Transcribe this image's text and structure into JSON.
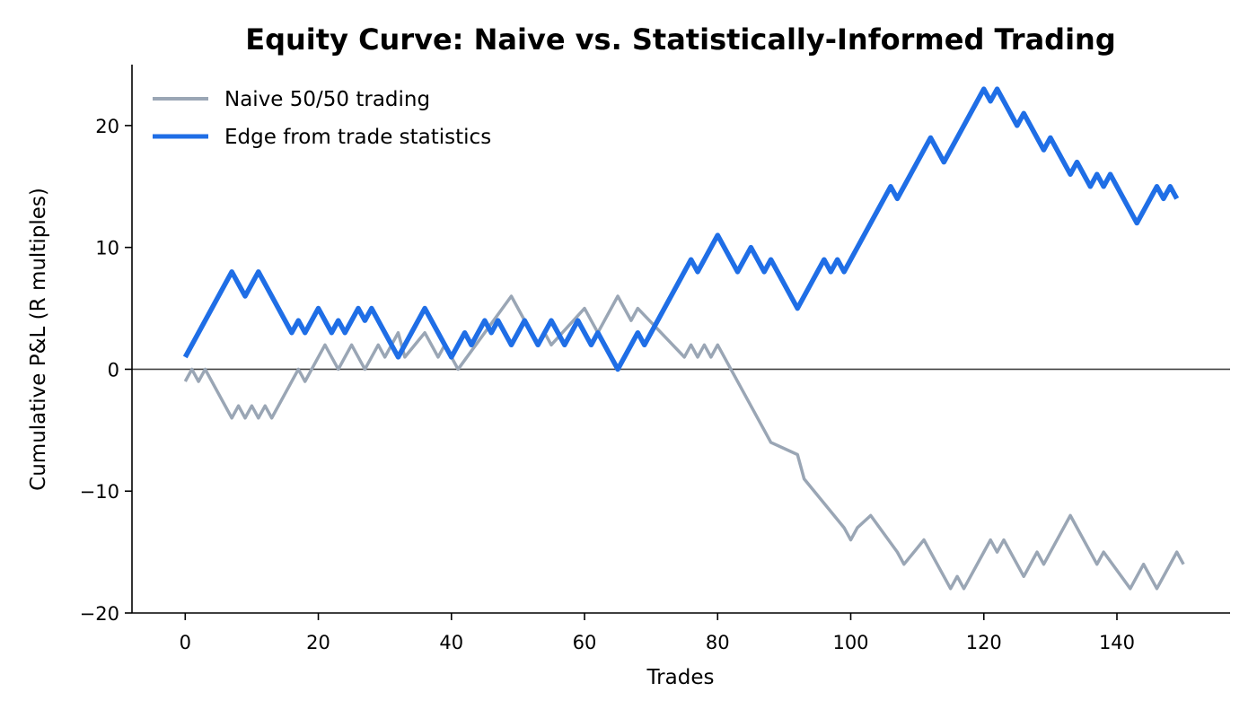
{
  "chart_data": {
    "type": "line",
    "title": "Equity Curve: Naive vs. Statistically-Informed Trading",
    "xlabel": "Trades",
    "ylabel": "Cumulative P&L (R multiples)",
    "xlim": [
      -8,
      157
    ],
    "ylim": [
      -20,
      25
    ],
    "xticks": [
      0,
      20,
      40,
      60,
      80,
      100,
      120,
      140
    ],
    "yticks": [
      -20,
      -10,
      0,
      10,
      20
    ],
    "grid": false,
    "zero_line": true,
    "legend_position": "top-left",
    "series": [
      {
        "name": "Naive 50/50 trading",
        "color": "#9aa6b5",
        "points": [
          [
            0,
            -1
          ],
          [
            1,
            0
          ],
          [
            2,
            -1
          ],
          [
            3,
            0
          ],
          [
            7,
            -4
          ],
          [
            8,
            -3
          ],
          [
            9,
            -4
          ],
          [
            10,
            -3
          ],
          [
            11,
            -4
          ],
          [
            12,
            -3
          ],
          [
            13,
            -4
          ],
          [
            17,
            0
          ],
          [
            18,
            -1
          ],
          [
            21,
            2
          ],
          [
            23,
            0
          ],
          [
            25,
            2
          ],
          [
            27,
            0
          ],
          [
            29,
            2
          ],
          [
            30,
            1
          ],
          [
            31,
            2
          ],
          [
            32,
            3
          ],
          [
            33,
            1
          ],
          [
            36,
            3
          ],
          [
            38,
            1
          ],
          [
            39,
            2
          ],
          [
            41,
            0
          ],
          [
            49,
            6
          ],
          [
            53,
            2
          ],
          [
            54,
            3
          ],
          [
            55,
            2
          ],
          [
            60,
            5
          ],
          [
            62,
            3
          ],
          [
            65,
            6
          ],
          [
            67,
            4
          ],
          [
            68,
            5
          ],
          [
            75,
            1
          ],
          [
            76,
            2
          ],
          [
            77,
            1
          ],
          [
            78,
            2
          ],
          [
            79,
            1
          ],
          [
            80,
            2
          ],
          [
            87,
            -5
          ],
          [
            88,
            -6
          ],
          [
            92,
            -7
          ],
          [
            93,
            -9
          ],
          [
            99,
            -13
          ],
          [
            100,
            -14
          ],
          [
            101,
            -13
          ],
          [
            103,
            -12
          ],
          [
            107,
            -15
          ],
          [
            108,
            -16
          ],
          [
            111,
            -14
          ],
          [
            115,
            -18
          ],
          [
            116,
            -17
          ],
          [
            117,
            -18
          ],
          [
            120,
            -15
          ],
          [
            121,
            -14
          ],
          [
            122,
            -15
          ],
          [
            123,
            -14
          ],
          [
            126,
            -17
          ],
          [
            128,
            -15
          ],
          [
            129,
            -16
          ],
          [
            133,
            -12
          ],
          [
            137,
            -16
          ],
          [
            138,
            -15
          ],
          [
            142,
            -18
          ],
          [
            144,
            -16
          ],
          [
            146,
            -18
          ],
          [
            149,
            -15
          ],
          [
            150,
            -16
          ]
        ]
      },
      {
        "name": "Edge from trade statistics",
        "color": "#1f6ee6",
        "points": [
          [
            0,
            1
          ],
          [
            7,
            8
          ],
          [
            9,
            6
          ],
          [
            11,
            8
          ],
          [
            16,
            3
          ],
          [
            17,
            4
          ],
          [
            18,
            3
          ],
          [
            20,
            5
          ],
          [
            22,
            3
          ],
          [
            23,
            4
          ],
          [
            24,
            3
          ],
          [
            26,
            5
          ],
          [
            27,
            4
          ],
          [
            28,
            5
          ],
          [
            32,
            1
          ],
          [
            36,
            5
          ],
          [
            40,
            1
          ],
          [
            42,
            3
          ],
          [
            43,
            2
          ],
          [
            45,
            4
          ],
          [
            46,
            3
          ],
          [
            47,
            4
          ],
          [
            49,
            2
          ],
          [
            51,
            4
          ],
          [
            53,
            2
          ],
          [
            55,
            4
          ],
          [
            57,
            2
          ],
          [
            59,
            4
          ],
          [
            61,
            2
          ],
          [
            62,
            3
          ],
          [
            65,
            0
          ],
          [
            68,
            3
          ],
          [
            69,
            2
          ],
          [
            76,
            9
          ],
          [
            77,
            8
          ],
          [
            80,
            11
          ],
          [
            83,
            8
          ],
          [
            85,
            10
          ],
          [
            87,
            8
          ],
          [
            88,
            9
          ],
          [
            92,
            5
          ],
          [
            96,
            9
          ],
          [
            97,
            8
          ],
          [
            98,
            9
          ],
          [
            99,
            8
          ],
          [
            106,
            15
          ],
          [
            107,
            14
          ],
          [
            112,
            19
          ],
          [
            114,
            17
          ],
          [
            120,
            23
          ],
          [
            121,
            22
          ],
          [
            122,
            23
          ],
          [
            125,
            20
          ],
          [
            126,
            21
          ],
          [
            129,
            18
          ],
          [
            130,
            19
          ],
          [
            133,
            16
          ],
          [
            134,
            17
          ],
          [
            136,
            15
          ],
          [
            137,
            16
          ],
          [
            138,
            15
          ],
          [
            139,
            16
          ],
          [
            143,
            12
          ],
          [
            146,
            15
          ],
          [
            147,
            14
          ],
          [
            148,
            15
          ],
          [
            149,
            14
          ]
        ]
      }
    ]
  }
}
